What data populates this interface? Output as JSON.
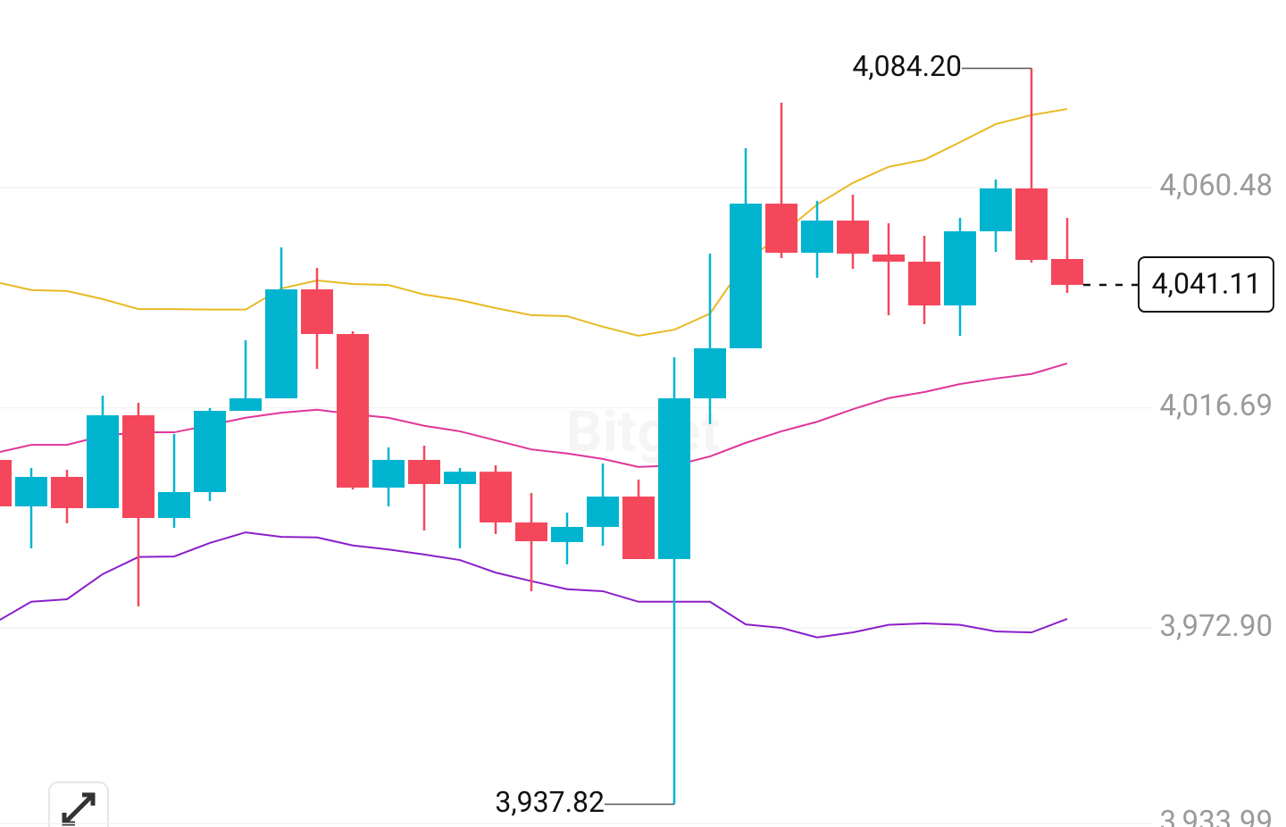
{
  "chart_data": {
    "type": "candlestick",
    "watermark": "Bitget",
    "ylim": [
      3933.3,
      4097.78
    ],
    "yticks": [
      {
        "value": 4060.48,
        "label": "4,060.48"
      },
      {
        "value": 4016.69,
        "label": "4,016.69"
      },
      {
        "value": 3972.9,
        "label": "3,972.90"
      },
      {
        "value": 3933.99,
        "label": "3,933.99"
      }
    ],
    "grid": true,
    "up_color": "#00b4d0",
    "down_color": "#f5475c",
    "candles": {
      "open": [
        4006.31,
        3997.07,
        4002.93,
        3996.71,
        4015.19,
        3994.76,
        3999.91,
        4016.07,
        4018.56,
        4040.23,
        4031.35,
        4000.8,
        4006.31,
        4001.51,
        4003.96,
        3993.87,
        3989.97,
        3992.98,
        3999.02,
        3986.59,
        4018.56,
        4028.51,
        4057.28,
        4047.51,
        4053.91,
        4047.16,
        4045.74,
        4037.03,
        4051.78,
        4060.3,
        4046.27
      ],
      "high": [
        4007.19,
        4004.71,
        4004.35,
        4019.09,
        4017.67,
        4011.46,
        4016.61,
        4030.11,
        4048.58,
        4044.49,
        4031.88,
        4008.79,
        4009.15,
        4004.71,
        4005.24,
        3999.73,
        3995.83,
        4005.6,
        4002.4,
        4026.73,
        4047.34,
        4068.3,
        4077.35,
        4057.82,
        4059.06,
        4053.38,
        4050.89,
        4054.44,
        4062.08,
        4084.2,
        4054.44
      ],
      "low": [
        3996.54,
        3988.72,
        3993.7,
        3996.71,
        3977.18,
        3992.81,
        3998.13,
        4016.07,
        4018.56,
        4024.42,
        4000.44,
        3997.07,
        3992.27,
        3988.72,
        3991.56,
        3980.19,
        3985.54,
        3989.26,
        3986.59,
        3937.82,
        4013.41,
        4028.51,
        4046.45,
        4042.54,
        4044.32,
        4035.08,
        4033.3,
        4030.99,
        4047.69,
        4045.56,
        4039.52
      ],
      "close": [
        3997.07,
        4002.93,
        3996.71,
        4015.19,
        3994.76,
        3999.91,
        4016.07,
        4018.56,
        4040.23,
        4031.35,
        4000.8,
        4006.31,
        4001.51,
        4003.96,
        3993.87,
        3990.14,
        3992.98,
        3999.02,
        3986.59,
        4018.56,
        4028.51,
        4057.28,
        4047.51,
        4053.91,
        4047.34,
        4045.74,
        4037.03,
        4051.78,
        4060.3,
        4046.09,
        4041.11
      ]
    },
    "series": [
      {
        "color": "#e8b923",
        "values": [
          4041.7,
          4040.1,
          4039.9,
          4038.3,
          4036.3,
          4036.3,
          4036.2,
          4036.2,
          4040.4,
          4042.0,
          4041.3,
          4041.1,
          4039.2,
          4038.1,
          4036.5,
          4035.1,
          4034.9,
          4032.8,
          4031.0,
          4032.2,
          4035.4,
          4045.7,
          4051.2,
          4057.1,
          4061.4,
          4064.6,
          4066.0,
          4069.5,
          4073.1,
          4074.9,
          4076.1
        ]
      },
      {
        "color": "#e0359a",
        "values": [
          4007.7,
          4009.3,
          4009.3,
          4011.1,
          4011.8,
          4011.8,
          4013.2,
          4014.7,
          4015.7,
          4016.3,
          4015.4,
          4014.7,
          4013.1,
          4012.0,
          4010.2,
          4008.4,
          4007.6,
          4006.5,
          4004.9,
          4005.2,
          4007.0,
          4009.7,
          4012.0,
          4013.9,
          4016.4,
          4018.6,
          4019.8,
          4021.4,
          4022.5,
          4023.4,
          4025.5
        ]
      },
      {
        "color": "#8a1fc9",
        "values": [
          3974.0,
          3978.1,
          3978.6,
          3983.6,
          3987.0,
          3987.1,
          3989.8,
          3991.9,
          3991.0,
          3990.9,
          3989.3,
          3988.5,
          3987.5,
          3986.4,
          3983.9,
          3982.2,
          3980.6,
          3980.2,
          3978.1,
          3978.1,
          3978.1,
          3973.6,
          3972.9,
          3971.0,
          3972.0,
          3973.5,
          3973.8,
          3973.5,
          3972.2,
          3972.0,
          3974.7
        ]
      }
    ],
    "annotations": [
      {
        "value": 4084.2,
        "label": "4,084.20"
      },
      {
        "value": 3937.82,
        "label": "3,937.82"
      }
    ],
    "last_price": {
      "value": 4041.11,
      "label": "4,041.11"
    }
  }
}
